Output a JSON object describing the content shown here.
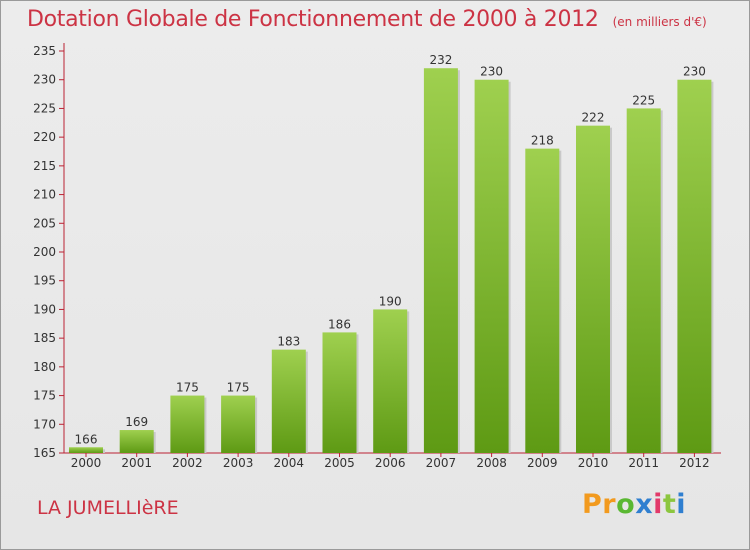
{
  "header": {
    "title": "Dotation Globale de Fonctionnement de 2000 à 2012",
    "unit": "(en milliers d'€)"
  },
  "footer": {
    "commune": "LA JUMELLIèRE",
    "logo": {
      "letters": [
        "P",
        "r",
        "o",
        "x",
        "i",
        "t",
        "i"
      ],
      "colors": [
        "#f29a1e",
        "#f29a1e",
        "#5ab832",
        "#2f7fd0",
        "#e23a6a",
        "#8cc63f",
        "#2f7fd0"
      ]
    }
  },
  "colors": {
    "title": "#cc3344",
    "bar_light": "#9fd04f",
    "bar_dark": "#5e9a14",
    "axis": "#bb2233"
  },
  "chart_data": {
    "type": "bar",
    "categories": [
      "2000",
      "2001",
      "2002",
      "2003",
      "2004",
      "2005",
      "2006",
      "2007",
      "2008",
      "2009",
      "2010",
      "2011",
      "2012"
    ],
    "values": [
      166,
      169,
      175,
      175,
      183,
      186,
      190,
      232,
      230,
      218,
      222,
      225,
      230
    ],
    "data_labels": [
      "166",
      "169",
      "175",
      "175",
      "183",
      "186",
      "190",
      "232",
      "230",
      "218",
      "222",
      "225",
      "230"
    ],
    "ylim": [
      165,
      235
    ],
    "yticks": [
      165,
      170,
      175,
      180,
      185,
      190,
      195,
      200,
      205,
      210,
      215,
      220,
      225,
      230,
      235
    ],
    "grid": false,
    "legend": "none"
  }
}
